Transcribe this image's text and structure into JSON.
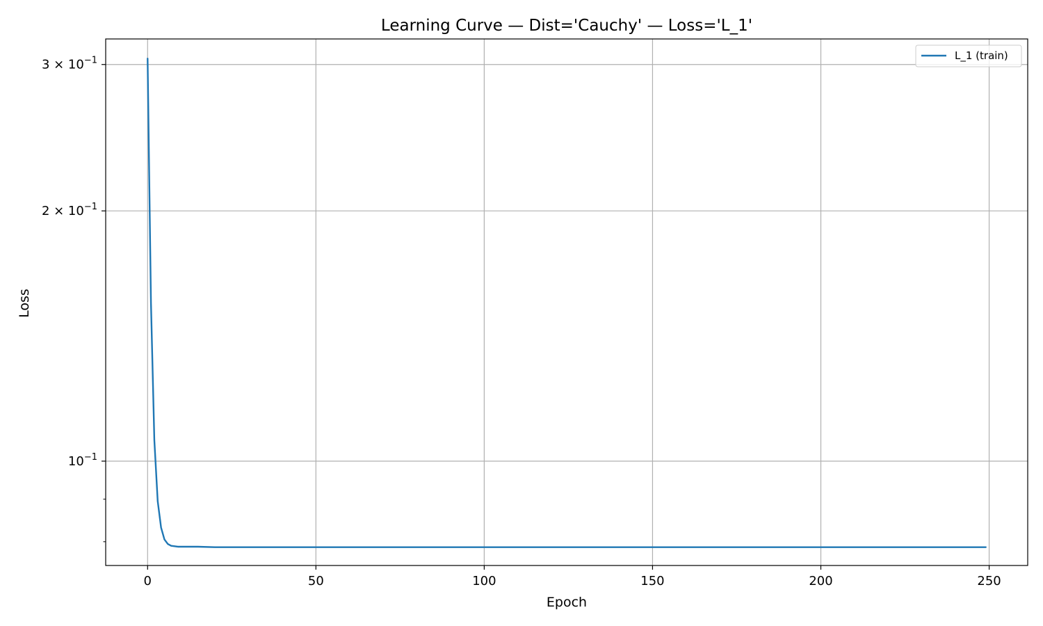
{
  "chart_data": {
    "type": "line",
    "title": "Learning Curve — Dist='Cauchy' — Loss='L_1'",
    "xlabel": "Epoch",
    "ylabel": "Loss",
    "yscale": "log",
    "xlim": [
      -12.45,
      261.45
    ],
    "ylim": [
      0.0749,
      0.322
    ],
    "grid": true,
    "legend_position": "top-right",
    "x_ticks": [
      0,
      50,
      100,
      150,
      200,
      250
    ],
    "x_tick_labels": [
      "0",
      "50",
      "100",
      "150",
      "200",
      "250"
    ],
    "y_major_ticks": [
      {
        "value": 0.1,
        "base": "10",
        "exp": "−1"
      },
      {
        "value": 0.2,
        "base": "2 × 10",
        "exp": "−1"
      },
      {
        "value": 0.3,
        "base": "3 × 10",
        "exp": "−1"
      }
    ],
    "y_minor_ticks": [
      0.08,
      0.09
    ],
    "series": [
      {
        "name": "L_1 (train)",
        "color": "#1f77b4",
        "x": [
          0,
          1,
          2,
          3,
          4,
          5,
          6,
          7,
          8,
          9,
          10,
          12,
          15,
          20,
          25,
          30,
          40,
          50,
          60,
          70,
          80,
          90,
          100,
          110,
          120,
          130,
          140,
          150,
          160,
          170,
          180,
          190,
          200,
          210,
          220,
          230,
          240,
          249
        ],
        "y": [
          0.305,
          0.155,
          0.106,
          0.0895,
          0.0832,
          0.0805,
          0.0795,
          0.0791,
          0.079,
          0.0789,
          0.0789,
          0.0789,
          0.0789,
          0.0788,
          0.0788,
          0.0788,
          0.0788,
          0.0788,
          0.0788,
          0.0788,
          0.0788,
          0.0788,
          0.0788,
          0.0788,
          0.0788,
          0.0788,
          0.0788,
          0.0788,
          0.0788,
          0.0788,
          0.0788,
          0.0788,
          0.0788,
          0.0788,
          0.0788,
          0.0788,
          0.0788,
          0.0788
        ]
      }
    ]
  }
}
